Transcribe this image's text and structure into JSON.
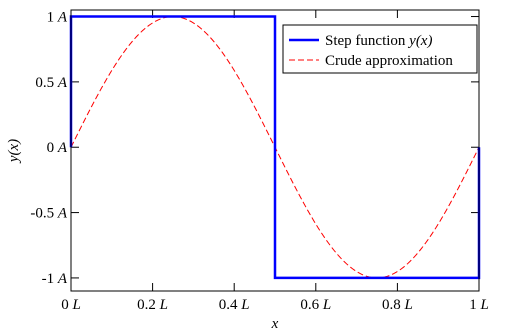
{
  "chart_data": {
    "type": "line",
    "x_label": "x",
    "y_label": "y(x)",
    "xlim": [
      0,
      1
    ],
    "ylim": [
      -1.1,
      1.05
    ],
    "x_ticks": [
      0,
      0.2,
      0.4,
      0.6,
      0.8,
      1.0
    ],
    "x_tick_labels": [
      "0",
      "0.2",
      "0.4",
      "0.6",
      "0.8",
      "1"
    ],
    "x_tick_unit": "L",
    "y_ticks": [
      1,
      0.5,
      0,
      -0.5,
      -1
    ],
    "y_tick_labels": [
      "1",
      "0.5",
      "0",
      "-0.5",
      "-1"
    ],
    "y_tick_unit": "A",
    "grid": false,
    "legend_position": "top-right",
    "series": [
      {
        "name": "Step function y(x)",
        "name_plain": "Step function ",
        "name_italic": "y(x)",
        "style": "solid",
        "color": "#0000ff",
        "x": [
          0,
          0,
          0.5,
          0.5,
          1,
          1
        ],
        "y": [
          0,
          1,
          1,
          -1,
          -1,
          0
        ]
      },
      {
        "name": "Crude approximation",
        "style": "dashed",
        "color": "#ff0000",
        "function": "sin(2*pi*x)",
        "x": [
          0,
          0.05,
          0.1,
          0.15,
          0.2,
          0.25,
          0.3,
          0.35,
          0.4,
          0.45,
          0.5,
          0.55,
          0.6,
          0.65,
          0.7,
          0.75,
          0.8,
          0.85,
          0.9,
          0.95,
          1.0
        ],
        "y": [
          0,
          0.309,
          0.588,
          0.809,
          0.951,
          1,
          0.951,
          0.809,
          0.588,
          0.309,
          0,
          -0.309,
          -0.588,
          -0.809,
          -0.951,
          -1,
          -0.951,
          -0.809,
          -0.588,
          -0.309,
          0
        ]
      }
    ]
  }
}
